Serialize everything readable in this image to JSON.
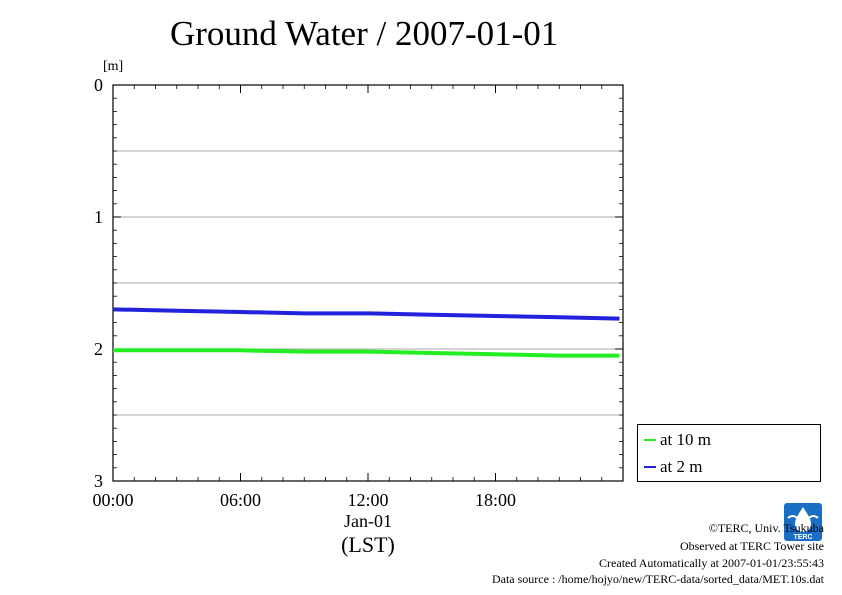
{
  "title": "Ground Water / 2007-01-01",
  "chart_data": {
    "type": "line",
    "title": "Ground Water / 2007-01-01",
    "ylabel": "[m]",
    "xlabel": "(LST)",
    "x_date_label": "Jan-01",
    "x_ticks": [
      "00:00",
      "06:00",
      "12:00",
      "18:00"
    ],
    "y_ticks": [
      "0",
      "1",
      "2",
      "3"
    ],
    "xlim": [
      "00:00",
      "24:00"
    ],
    "ylim": [
      3,
      0
    ],
    "y_inverted": true,
    "grid": "horizontal",
    "legend_position": "bottom-right, outside plot",
    "series": [
      {
        "name": "at 10 m",
        "color": "#22ee22",
        "x": [
          "00:00",
          "03:00",
          "06:00",
          "09:00",
          "12:00",
          "15:00",
          "18:00",
          "21:00",
          "23:50"
        ],
        "y": [
          2.01,
          2.01,
          2.01,
          2.02,
          2.02,
          2.03,
          2.04,
          2.05,
          2.05
        ]
      },
      {
        "name": "at 2 m",
        "color": "#2222dd",
        "x": [
          "00:00",
          "03:00",
          "06:00",
          "09:00",
          "12:00",
          "15:00",
          "18:00",
          "21:00",
          "23:50"
        ],
        "y": [
          1.7,
          1.71,
          1.72,
          1.73,
          1.73,
          1.74,
          1.75,
          1.76,
          1.77
        ]
      }
    ]
  },
  "footer": {
    "copyright": "©TERC, Univ. Tsukuba",
    "observed": "Observed at TERC Tower site",
    "created": "Created Automatically at 2007-01-01/23:55:43",
    "source": "Data source : /home/hojyo/new/TERC-data/sorted_data/MET.10s.dat"
  },
  "logo": {
    "name": "terc-logo",
    "text": "TERC",
    "color": "#1a6fc4"
  }
}
